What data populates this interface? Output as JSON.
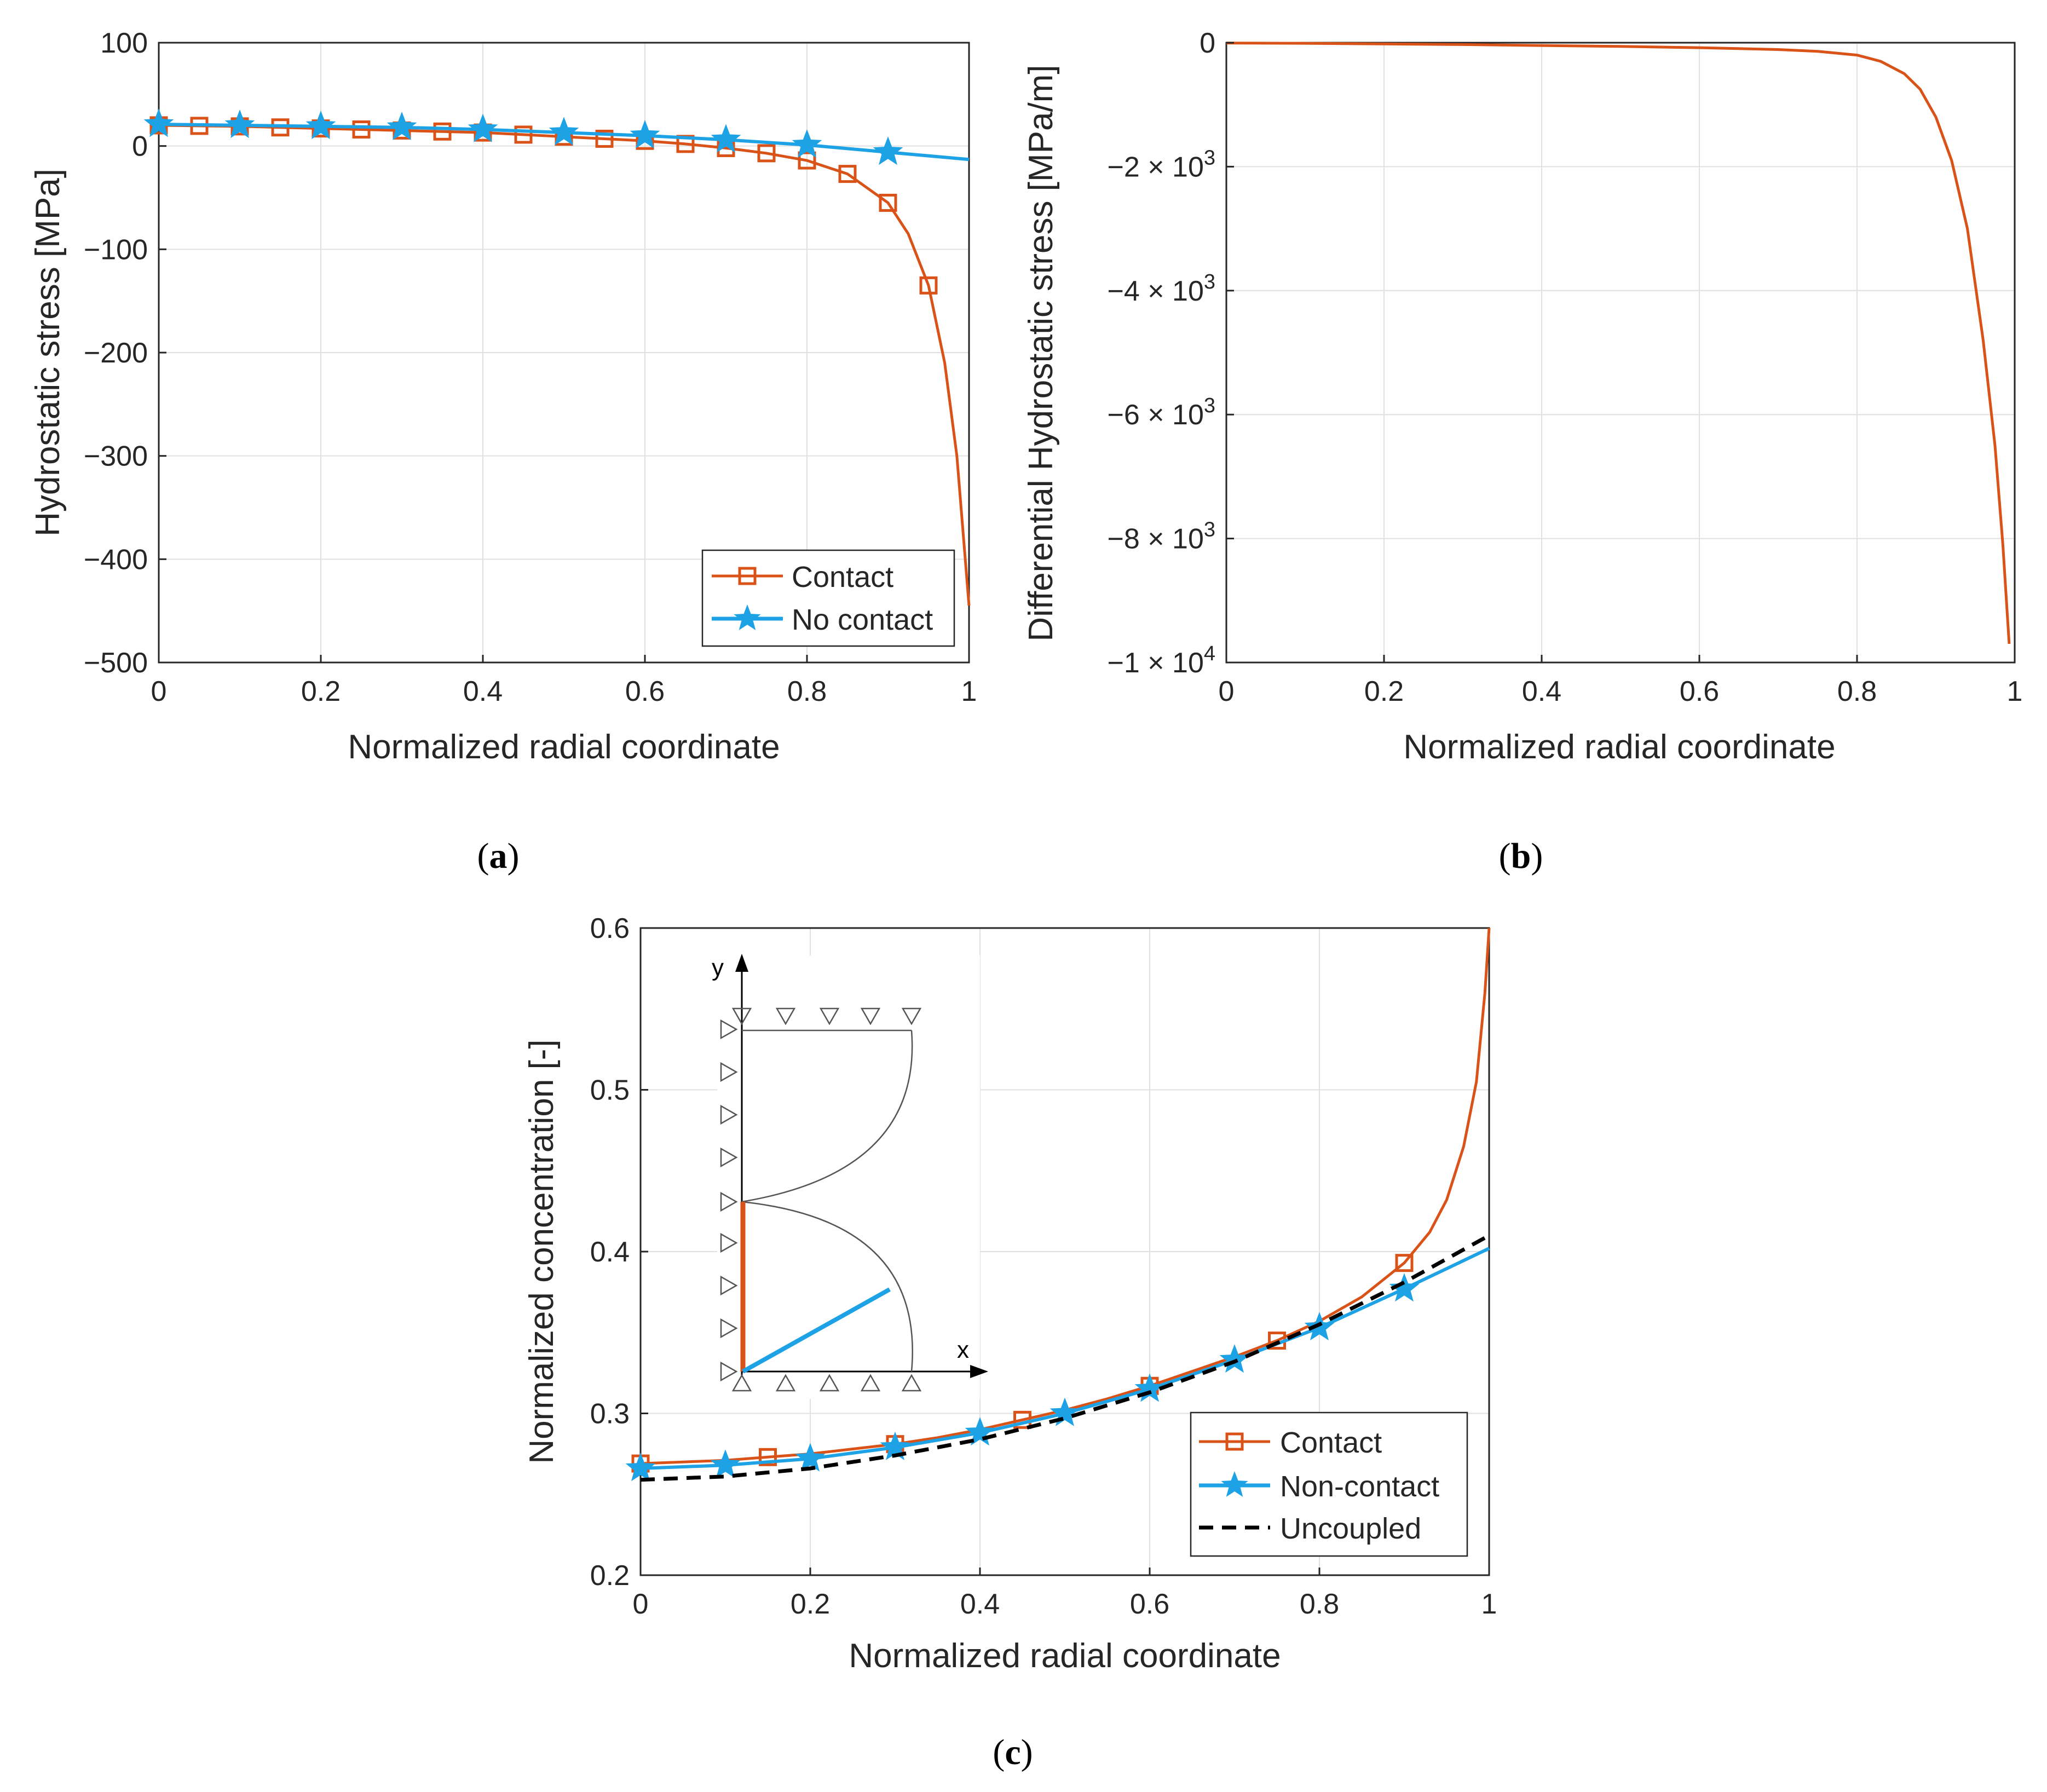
{
  "colors": {
    "contact": "#d95319",
    "no_contact": "#1ea2e6",
    "uncoupled": "#000000",
    "grid": "#e0e0e0",
    "axis": "#262626"
  },
  "chart_data": [
    {
      "id": "a",
      "type": "line",
      "caption_label": "a",
      "xlabel": "Normalized radial coordinate",
      "ylabel": "Hydrostatic stress [MPa]",
      "xlim": [
        0,
        1
      ],
      "ylim": [
        -500,
        100
      ],
      "xticks": [
        0,
        0.2,
        0.4,
        0.6,
        0.8,
        1
      ],
      "xtick_labels": [
        "0",
        "0.2",
        "0.4",
        "0.6",
        "0.8",
        "1"
      ],
      "yticks": [
        100,
        0,
        -100,
        -200,
        -300,
        -400,
        -500
      ],
      "ytick_labels": [
        "100",
        "0",
        "−100",
        "−200",
        "−300",
        "−400",
        "−500"
      ],
      "grid": true,
      "legend_position": "bottom-right",
      "series": [
        {
          "name": "Contact",
          "color_key": "contact",
          "marker": "square",
          "dash": false,
          "x": [
            0,
            0.05,
            0.1,
            0.15,
            0.2,
            0.25,
            0.3,
            0.35,
            0.4,
            0.45,
            0.5,
            0.55,
            0.6,
            0.65,
            0.7,
            0.75,
            0.8,
            0.85,
            0.9,
            0.925,
            0.95,
            0.97,
            0.985,
            1.0
          ],
          "y": [
            20,
            19.5,
            19,
            18,
            17,
            16,
            15,
            14,
            13,
            11,
            9,
            7,
            5,
            2,
            -2,
            -7,
            -14,
            -27,
            -55,
            -85,
            -135,
            -210,
            -300,
            -445
          ],
          "marker_x": [
            0,
            0.05,
            0.1,
            0.15,
            0.2,
            0.25,
            0.3,
            0.35,
            0.4,
            0.45,
            0.5,
            0.55,
            0.6,
            0.65,
            0.7,
            0.75,
            0.8,
            0.85,
            0.9,
            0.95
          ],
          "marker_y": [
            20,
            19.5,
            19,
            18,
            17,
            16,
            15,
            14,
            13,
            11,
            9,
            7,
            5,
            2,
            -2,
            -7,
            -14,
            -27,
            -55,
            -135
          ]
        },
        {
          "name": "No contact",
          "color_key": "no_contact",
          "marker": "star",
          "dash": false,
          "x": [
            0,
            0.1,
            0.2,
            0.3,
            0.4,
            0.5,
            0.6,
            0.7,
            0.8,
            0.9,
            1.0
          ],
          "y": [
            21,
            20,
            19,
            18,
            16,
            13,
            10,
            6,
            1,
            -6,
            -13
          ],
          "marker_x": [
            0,
            0.1,
            0.2,
            0.3,
            0.4,
            0.5,
            0.6,
            0.7,
            0.8,
            0.9
          ],
          "marker_y": [
            21,
            20,
            19,
            18,
            16,
            13,
            10,
            6,
            1,
            -6
          ]
        }
      ]
    },
    {
      "id": "b",
      "type": "line",
      "caption_label": "b",
      "xlabel": "Normalized radial coordinate",
      "ylabel": "Differential Hydrostatic stress [MPa/m]",
      "xlim": [
        0,
        1
      ],
      "ylim": [
        -10000,
        0
      ],
      "xticks": [
        0,
        0.2,
        0.4,
        0.6,
        0.8,
        1
      ],
      "xtick_labels": [
        "0",
        "0.2",
        "0.4",
        "0.6",
        "0.8",
        "1"
      ],
      "yticks": [
        0,
        -2000,
        -4000,
        -6000,
        -8000,
        -10000
      ],
      "ytick_labels": [
        {
          "mant": "0",
          "exp": ""
        },
        {
          "mant": "−2 × 10",
          "exp": "3"
        },
        {
          "mant": "−4 × 10",
          "exp": "3"
        },
        {
          "mant": "−6 × 10",
          "exp": "3"
        },
        {
          "mant": "−8 × 10",
          "exp": "3"
        },
        {
          "mant": "−1 × 10",
          "exp": "4"
        }
      ],
      "grid": true,
      "series": [
        {
          "name": "Differential hydrostatic stress",
          "color_key": "contact",
          "marker": "none",
          "dash": false,
          "x": [
            0,
            0.1,
            0.2,
            0.3,
            0.4,
            0.5,
            0.6,
            0.7,
            0.75,
            0.8,
            0.83,
            0.86,
            0.88,
            0.9,
            0.92,
            0.94,
            0.96,
            0.975,
            0.985,
            0.993
          ],
          "y": [
            -5,
            -10,
            -20,
            -30,
            -45,
            -60,
            -80,
            -110,
            -140,
            -200,
            -300,
            -500,
            -750,
            -1200,
            -1900,
            -3000,
            -4800,
            -6500,
            -8100,
            -9700
          ]
        }
      ]
    },
    {
      "id": "c",
      "type": "line",
      "caption_label": "c",
      "xlabel": "Normalized radial coordinate",
      "ylabel": "Normalized concentration [-]",
      "xlim": [
        0,
        1
      ],
      "ylim": [
        0.2,
        0.6
      ],
      "xticks": [
        0,
        0.2,
        0.4,
        0.6,
        0.8,
        1
      ],
      "xtick_labels": [
        "0",
        "0.2",
        "0.4",
        "0.6",
        "0.8",
        "1"
      ],
      "yticks": [
        0.6,
        0.5,
        0.4,
        0.3,
        0.2
      ],
      "ytick_labels": [
        "0.6",
        "0.5",
        "0.4",
        "0.3",
        "0.2"
      ],
      "grid": true,
      "legend_position": "bottom-right",
      "series": [
        {
          "name": "Contact",
          "color_key": "contact",
          "marker": "square",
          "dash": false,
          "x": [
            0,
            0.05,
            0.1,
            0.15,
            0.2,
            0.25,
            0.3,
            0.35,
            0.4,
            0.45,
            0.5,
            0.55,
            0.6,
            0.65,
            0.7,
            0.75,
            0.8,
            0.85,
            0.9,
            0.93,
            0.95,
            0.97,
            0.985,
            0.995,
            1.0
          ],
          "y": [
            0.269,
            0.27,
            0.271,
            0.273,
            0.275,
            0.278,
            0.281,
            0.285,
            0.29,
            0.296,
            0.302,
            0.309,
            0.317,
            0.326,
            0.335,
            0.345,
            0.357,
            0.372,
            0.393,
            0.412,
            0.432,
            0.465,
            0.505,
            0.56,
            0.6
          ],
          "marker_x": [
            0,
            0.15,
            0.3,
            0.45,
            0.6,
            0.75,
            0.9
          ],
          "marker_y": [
            0.269,
            0.273,
            0.281,
            0.296,
            0.317,
            0.345,
            0.393
          ]
        },
        {
          "name": "Non-contact",
          "color_key": "no_contact",
          "marker": "star",
          "dash": false,
          "x": [
            0,
            0.1,
            0.2,
            0.3,
            0.4,
            0.5,
            0.6,
            0.7,
            0.8,
            0.9,
            1.0
          ],
          "y": [
            0.266,
            0.268,
            0.272,
            0.279,
            0.288,
            0.3,
            0.315,
            0.333,
            0.353,
            0.377,
            0.402
          ],
          "marker_x": [
            0,
            0.1,
            0.2,
            0.3,
            0.4,
            0.5,
            0.6,
            0.7,
            0.8,
            0.9
          ],
          "marker_y": [
            0.266,
            0.268,
            0.272,
            0.279,
            0.288,
            0.3,
            0.315,
            0.333,
            0.353,
            0.377
          ]
        },
        {
          "name": "Uncoupled",
          "color_key": "uncoupled",
          "marker": "none",
          "dash": true,
          "x": [
            0,
            0.1,
            0.2,
            0.3,
            0.4,
            0.5,
            0.6,
            0.7,
            0.8,
            0.9,
            1.0
          ],
          "y": [
            0.259,
            0.261,
            0.266,
            0.274,
            0.284,
            0.297,
            0.313,
            0.332,
            0.355,
            0.381,
            0.41
          ]
        }
      ]
    }
  ],
  "inset": {
    "y_axis_label": "y",
    "x_axis_label": "x"
  }
}
